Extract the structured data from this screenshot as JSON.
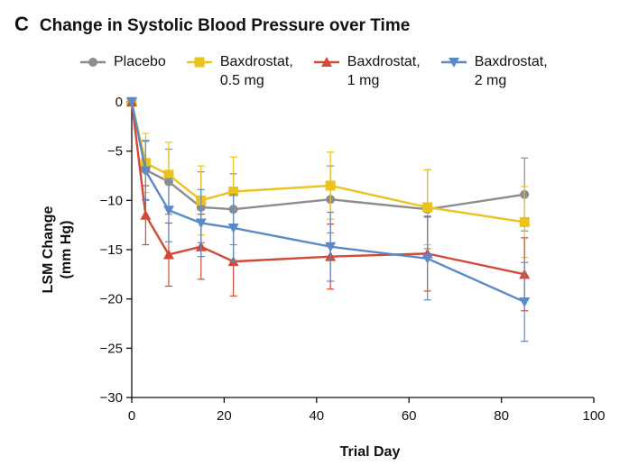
{
  "panel_letter": "C",
  "chart_data": {
    "type": "line",
    "title": "Change in Systolic Blood Pressure over Time",
    "xlabel": "Trial Day",
    "ylabel": "LSM Change\n(mm Hg)",
    "xlim": [
      0,
      100
    ],
    "ylim": [
      -30,
      0
    ],
    "xticks": [
      0,
      20,
      40,
      60,
      80,
      100
    ],
    "yticks": [
      0,
      -5,
      -10,
      -15,
      -20,
      -25,
      -30
    ],
    "grid": false,
    "legend_position": "top",
    "series": [
      {
        "name": "Placebo",
        "color": "#8c8c8c",
        "marker": "circle",
        "x": [
          0,
          3,
          8,
          15,
          22,
          43,
          64,
          85
        ],
        "y": [
          0,
          -6.9,
          -8.1,
          -10.7,
          -10.9,
          -9.9,
          -10.9,
          -9.4
        ],
        "error": [
          0,
          3.0,
          3.3,
          3.6,
          3.6,
          3.4,
          4.0,
          3.7
        ]
      },
      {
        "name": "Baxdrostat,\n0.5 mg",
        "color": "#ecc31c",
        "marker": "square",
        "x": [
          0,
          3,
          8,
          15,
          22,
          43,
          64,
          85
        ],
        "y": [
          0,
          -6.2,
          -7.4,
          -10.0,
          -9.1,
          -8.5,
          -10.7,
          -12.2
        ],
        "error": [
          0,
          3.0,
          3.3,
          3.5,
          3.5,
          3.4,
          3.8,
          3.6
        ]
      },
      {
        "name": "Baxdrostat,\n1 mg",
        "color": "#d24a37",
        "marker": "triangle-up",
        "x": [
          0,
          3,
          8,
          15,
          22,
          43,
          64,
          85
        ],
        "y": [
          0,
          -11.5,
          -15.5,
          -14.7,
          -16.2,
          -15.7,
          -15.4,
          -17.5
        ],
        "error": [
          0,
          3.0,
          3.2,
          3.3,
          3.5,
          3.3,
          3.8,
          3.7
        ]
      },
      {
        "name": "Baxdrostat,\n2 mg",
        "color": "#5b8ac6",
        "marker": "triangle-down",
        "x": [
          0,
          3,
          8,
          15,
          22,
          43,
          64,
          85
        ],
        "y": [
          0,
          -7.0,
          -11.0,
          -12.3,
          -12.8,
          -14.7,
          -15.9,
          -20.3
        ],
        "error": [
          0,
          3.0,
          3.2,
          3.4,
          3.4,
          3.5,
          4.2,
          4.0
        ]
      }
    ]
  }
}
